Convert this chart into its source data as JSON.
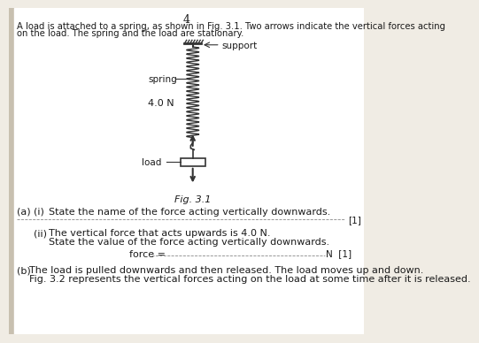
{
  "page_number": "4",
  "intro_text_line1": "A load is attached to a spring, as shown in Fig. 3.1. Two arrows indicate the vertical forces acting",
  "intro_text_line2": "on the load. The spring and the load are stationary.",
  "support_label": "support",
  "spring_label": "spring",
  "force_label": "4.0 N",
  "load_label": "load",
  "fig_caption": "Fig. 3.1",
  "part_a_label": "(a)",
  "part_a_i_label": "(i)",
  "part_a_i_text": "State the name of the force acting vertically downwards.",
  "mark_1": "[1]",
  "part_a_ii_label": "(ii)",
  "part_a_ii_text1": "The vertical force that acts upwards is 4.0 N.",
  "part_a_ii_text2": "State the value of the force acting vertically downwards.",
  "force_line_label": "force = ",
  "force_mark": "N  [1]",
  "part_b_label": "(b)",
  "part_b_text1": "The load is pulled downwards and then released. The load moves up and down.",
  "part_b_text2": "Fig. 3.2 represents the vertical forces acting on the load at some time after it is released.",
  "bg_color": "#f0ece4",
  "text_color": "#1a1a1a",
  "diagram_color": "#333333",
  "left_margin_color": "#c8c0b0"
}
